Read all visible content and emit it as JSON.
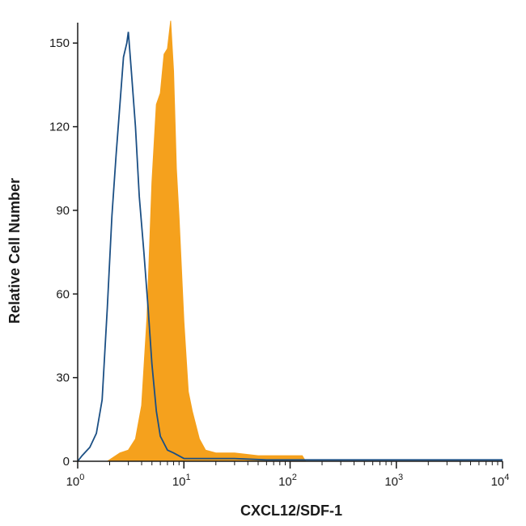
{
  "chart_data": {
    "type": "area",
    "title": "",
    "xlabel": "CXCL12/SDF-1",
    "ylabel": "Relative Cell Number",
    "x_scale": "log",
    "xlim": [
      1,
      10000
    ],
    "ylim": [
      0,
      155
    ],
    "x_ticks": [
      {
        "value": 1,
        "base": "10",
        "exp": "0"
      },
      {
        "value": 10,
        "base": "10",
        "exp": "1"
      },
      {
        "value": 100,
        "base": "10",
        "exp": "2"
      },
      {
        "value": 1000,
        "base": "10",
        "exp": "3"
      },
      {
        "value": 10000,
        "base": "10",
        "exp": "4"
      }
    ],
    "y_ticks": [
      "0",
      "30",
      "60",
      "90",
      "120",
      "150"
    ],
    "grid": false,
    "legend": "none",
    "series": [
      {
        "style": "filled",
        "color": "#f5a11d",
        "x": [
          1.9,
          2.5,
          3.0,
          3.5,
          4.0,
          4.5,
          5.0,
          5.5,
          6.0,
          6.5,
          7.0,
          7.5,
          8.0,
          8.5,
          9.0,
          10.0,
          11.0,
          12.0,
          14.0,
          16.0,
          20.0,
          30.0,
          50.0,
          80.0,
          130.0,
          140.0
        ],
        "y": [
          0,
          3,
          4,
          8,
          20,
          52,
          100,
          128,
          132,
          146,
          148,
          158,
          140,
          105,
          88,
          50,
          25,
          18,
          8,
          4,
          3,
          3,
          2,
          2,
          2,
          0
        ]
      },
      {
        "style": "outline",
        "color": "#1b4f84",
        "x": [
          1.0,
          1.1,
          1.3,
          1.5,
          1.7,
          1.9,
          2.1,
          2.3,
          2.5,
          2.7,
          2.9,
          3.0,
          3.2,
          3.5,
          3.8,
          4.2,
          4.6,
          5.0,
          5.5,
          6.0,
          7.0,
          8.0,
          10.0,
          15.0,
          30.0,
          60.0,
          200.0,
          10000.0
        ],
        "y": [
          0,
          2,
          5,
          10,
          22,
          55,
          88,
          110,
          128,
          145,
          150,
          154,
          140,
          120,
          95,
          75,
          55,
          35,
          18,
          9,
          4,
          3,
          1,
          1,
          1,
          0.5,
          0.5,
          0.5
        ]
      }
    ]
  }
}
